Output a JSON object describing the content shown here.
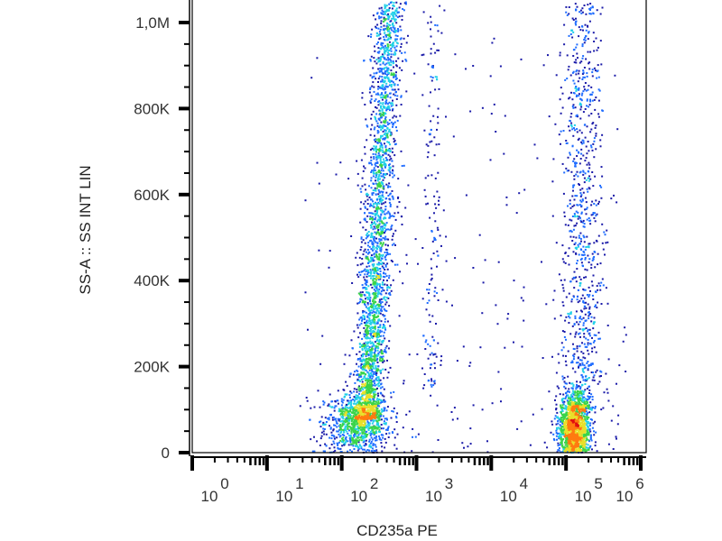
{
  "chart_data": {
    "type": "scatter",
    "style": "density pseudocolor dot plot",
    "xlabel": "CD235a PE",
    "ylabel": "SS-A :: SS INT LIN",
    "xscale": "log",
    "xlim": [
      1,
      1000000
    ],
    "ylim": [
      0,
      1050000
    ],
    "x_ticks": [
      {
        "base": "10",
        "exp": "0",
        "value": 1
      },
      {
        "base": "10",
        "exp": "1",
        "value": 10
      },
      {
        "base": "10",
        "exp": "2",
        "value": 100
      },
      {
        "base": "10",
        "exp": "3",
        "value": 1000
      },
      {
        "base": "10",
        "exp": "4",
        "value": 10000
      },
      {
        "base": "10",
        "exp": "5",
        "value": 100000
      },
      {
        "base": "10",
        "exp": "6",
        "value": 1000000
      }
    ],
    "y_ticks": [
      {
        "label": "0",
        "value": 0
      },
      {
        "label": "200K",
        "value": 200000
      },
      {
        "label": "400K",
        "value": 400000
      },
      {
        "label": "600K",
        "value": 600000
      },
      {
        "label": "800K",
        "value": 800000
      },
      {
        "label": "1,0M",
        "value": 1000000
      }
    ],
    "grid": false,
    "colormap": [
      "#1a1aa8",
      "#1e6cff",
      "#22d0e8",
      "#3ad44a",
      "#e8e02a",
      "#ff7a10",
      "#e01010"
    ],
    "populations": [
      {
        "desc": "low SS CD235a-dim cluster",
        "x_log10_center": 2.2,
        "x_log10_sd": 0.22,
        "y_center": 70000,
        "y_sd": 35000,
        "count": 900
      },
      {
        "desc": "CD235a-dim SS-high column",
        "x_log10_at_y0": 2.3,
        "x_log10_at_1M": 2.62,
        "x_log10_sd": 0.1,
        "y_range": [
          80000,
          1050000
        ],
        "count": 2600
      },
      {
        "desc": "faint column",
        "x_log10_center": 3.2,
        "x_log10_sd": 0.08,
        "y_range": [
          150000,
          1050000
        ],
        "count": 150
      },
      {
        "desc": "CD235a-positive erythrocytes",
        "x_log10_center": 5.1,
        "x_log10_sd": 0.1,
        "y_center": 60000,
        "y_sd": 40000,
        "count": 1500
      },
      {
        "desc": "CD235a-positive SS-high tail",
        "x_log10_center": 5.2,
        "x_log10_sd": 0.14,
        "y_range": [
          100000,
          1050000
        ],
        "count": 900
      }
    ]
  }
}
